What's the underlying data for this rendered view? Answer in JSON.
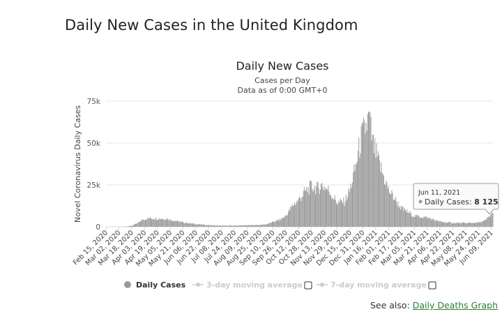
{
  "page": {
    "title": "Daily New Cases in the United Kingdom",
    "see_also_prefix": "See also:",
    "see_also_link": "Daily Deaths Graph"
  },
  "chart_data": {
    "type": "bar",
    "title": "Daily New Cases",
    "subtitle_1": "Cases per Day",
    "subtitle_2": "Data as of 0:00 GMT+0",
    "ylabel": "Novel Coronavirus Daily Cases",
    "xlabel": "",
    "ylim": [
      0,
      75000
    ],
    "y_ticks": [
      {
        "value": 0,
        "label": "0"
      },
      {
        "value": 25000,
        "label": "25k"
      },
      {
        "value": 50000,
        "label": "50k"
      },
      {
        "value": 75000,
        "label": "75k"
      }
    ],
    "x_range": [
      "2020-02-15",
      "2021-06-11"
    ],
    "x_tick_labels": [
      "Feb 15, 2020",
      "Mar 02, 2020",
      "Mar 18, 2020",
      "Apr 03, 2020",
      "Apr 19, 2020",
      "May 05, 2020",
      "May 21, 2020",
      "Jun 06, 2020",
      "Jun 22, 2020",
      "Jul 08, 2020",
      "Jul 24, 2020",
      "Aug 09, 2020",
      "Aug 25, 2020",
      "Sep 10, 2020",
      "Sep 26, 2020",
      "Oct 12, 2020",
      "Oct 28, 2020",
      "Nov 13, 2020",
      "Nov 29, 2020",
      "Dec 15, 2020",
      "Dec 31, 2020",
      "Jan 16, 2021",
      "Feb 01, 2021",
      "Feb 17, 2021",
      "Mar 05, 2021",
      "Mar 21, 2021",
      "Apr 06, 2021",
      "Apr 22, 2021",
      "May 08, 2021",
      "May 24, 2021",
      "Jun 09, 2021"
    ],
    "series": [
      {
        "name": "Daily Cases",
        "color": "#999999",
        "points": [
          [
            "2020-02-15",
            0
          ],
          [
            "2020-03-01",
            10
          ],
          [
            "2020-03-10",
            60
          ],
          [
            "2020-03-18",
            650
          ],
          [
            "2020-03-25",
            2000
          ],
          [
            "2020-04-01",
            4300
          ],
          [
            "2020-04-10",
            5200
          ],
          [
            "2020-04-20",
            4900
          ],
          [
            "2020-05-01",
            4800
          ],
          [
            "2020-05-10",
            3700
          ],
          [
            "2020-05-21",
            2600
          ],
          [
            "2020-06-06",
            1600
          ],
          [
            "2020-06-22",
            950
          ],
          [
            "2020-07-08",
            650
          ],
          [
            "2020-07-24",
            700
          ],
          [
            "2020-08-09",
            900
          ],
          [
            "2020-08-25",
            1100
          ],
          [
            "2020-09-01",
            1400
          ],
          [
            "2020-09-10",
            2800
          ],
          [
            "2020-09-20",
            4500
          ],
          [
            "2020-09-26",
            6500
          ],
          [
            "2020-10-05",
            13000
          ],
          [
            "2020-10-12",
            16000
          ],
          [
            "2020-10-20",
            21000
          ],
          [
            "2020-10-28",
            24000
          ],
          [
            "2020-11-05",
            23000
          ],
          [
            "2020-11-10",
            25000
          ],
          [
            "2020-11-18",
            22000
          ],
          [
            "2020-11-29",
            14500
          ],
          [
            "2020-12-08",
            15000
          ],
          [
            "2020-12-15",
            22000
          ],
          [
            "2020-12-22",
            36000
          ],
          [
            "2020-12-29",
            53000
          ],
          [
            "2021-01-04",
            60000
          ],
          [
            "2021-01-08",
            65000
          ],
          [
            "2021-01-12",
            50000
          ],
          [
            "2021-01-20",
            38000
          ],
          [
            "2021-02-01",
            22000
          ],
          [
            "2021-02-17",
            11000
          ],
          [
            "2021-03-05",
            6500
          ],
          [
            "2021-03-21",
            5500
          ],
          [
            "2021-04-06",
            3000
          ],
          [
            "2021-04-22",
            2300
          ],
          [
            "2021-05-08",
            2200
          ],
          [
            "2021-05-24",
            2500
          ],
          [
            "2021-06-01",
            3500
          ],
          [
            "2021-06-05",
            5500
          ],
          [
            "2021-06-11",
            8125
          ]
        ]
      },
      {
        "name": "3-day moving average",
        "color": "#cccccc",
        "visible": false
      },
      {
        "name": "7-day moving average",
        "color": "#cccccc",
        "visible": false
      }
    ],
    "tooltip": {
      "date": "Jun 11, 2021",
      "label": "Daily Cases:",
      "value": "8 125"
    },
    "grid": true,
    "legend": "bottom-center"
  }
}
